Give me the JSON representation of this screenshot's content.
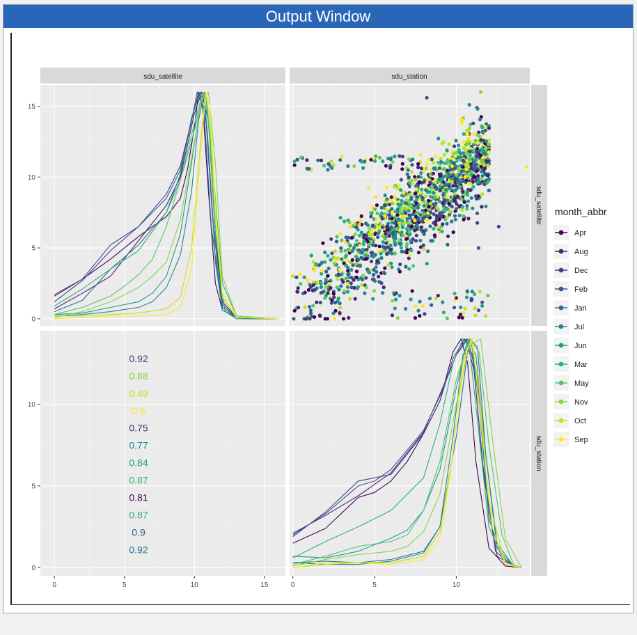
{
  "window": {
    "title": "Output Window"
  },
  "colors": {
    "Apr": "#440154",
    "Aug": "#482173",
    "Dec": "#433e85",
    "Feb": "#38588c",
    "Jan": "#2d708e",
    "Jul": "#25858e",
    "Jun": "#1e9b8a",
    "Mar": "#2ab07f",
    "May": "#52c569",
    "Nov": "#86d549",
    "Oct": "#c2df23",
    "Sep": "#fde725"
  },
  "chart_data": {
    "type": "scatter",
    "facets": {
      "columns": [
        "sdu_satellite",
        "sdu_station"
      ],
      "rows": [
        "sdu_satellite",
        "sdu_station"
      ]
    },
    "legend": {
      "title": "month_abbr",
      "position": "right",
      "entries": [
        "Apr",
        "Aug",
        "Dec",
        "Feb",
        "Jan",
        "Jul",
        "Jun",
        "Mar",
        "May",
        "Nov",
        "Oct",
        "Sep"
      ]
    },
    "panels": {
      "top_left": {
        "type": "line",
        "xlim": [
          -1,
          16.5
        ],
        "ylim": [
          -0.5,
          16.5
        ],
        "x_ticks": [
          0,
          5,
          10,
          15
        ],
        "y_ticks": [
          0,
          5,
          10,
          15
        ]
      },
      "top_right": {
        "type": "scatter",
        "xlim": [
          -0.2,
          14.5
        ],
        "ylim": [
          -0.5,
          16.5
        ],
        "x_ticks": [
          0,
          5,
          10
        ],
        "y_ticks": [
          0,
          5,
          10,
          15
        ]
      },
      "bottom_left": {
        "type": "table",
        "ylim": [
          -0.5,
          14.5
        ],
        "x_ticks": [
          0,
          5,
          10,
          15
        ],
        "y_ticks": [
          0,
          5,
          10
        ],
        "correlations": [
          {
            "value": "0.92",
            "month": "Dec"
          },
          {
            "value": "0.88",
            "month": "Nov"
          },
          {
            "value": "0.49",
            "month": "Oct"
          },
          {
            "value": "0.6",
            "month": "Sep"
          },
          {
            "value": "0.75",
            "month": "Aug"
          },
          {
            "value": "0.77",
            "month": "Jul"
          },
          {
            "value": "0.84",
            "month": "Jun"
          },
          {
            "value": "0.87",
            "month": "Mar"
          },
          {
            "value": "0.81",
            "month": "Apr"
          },
          {
            "value": "0.87",
            "month": "Mar"
          },
          {
            "value": "0.9",
            "month": "Feb"
          },
          {
            "value": "0.92",
            "month": "Jan"
          }
        ]
      },
      "bottom_right": {
        "type": "line",
        "xlim": [
          -0.2,
          14.5
        ],
        "ylim": [
          -0.5,
          14.5
        ],
        "x_ticks": [
          0,
          5,
          10
        ],
        "y_ticks": [
          0,
          5,
          10
        ]
      }
    },
    "density_satellite": [
      {
        "month": "Apr",
        "x": [
          0,
          2,
          4,
          6,
          8,
          9,
          9.5,
          10,
          10.3,
          10.6,
          11,
          11.5,
          12,
          13,
          14,
          16
        ],
        "y": [
          1.6,
          2.8,
          4.2,
          5.8,
          7.2,
          8.5,
          10.5,
          13.5,
          16,
          15,
          9,
          2.5,
          0.6,
          0.1,
          0,
          0
        ]
      },
      {
        "month": "Aug",
        "x": [
          0,
          2,
          4,
          6,
          8,
          9,
          10,
          10.5,
          11,
          11.5,
          12,
          13,
          16
        ],
        "y": [
          0.7,
          1.8,
          3,
          5.5,
          8,
          10,
          14.5,
          16,
          14,
          6,
          1.2,
          0.1,
          0
        ]
      },
      {
        "month": "Dec",
        "x": [
          0,
          2,
          4,
          6,
          8,
          9,
          9.8,
          10.3,
          10.8,
          11.3,
          12,
          13,
          16
        ],
        "y": [
          1.2,
          2.7,
          4.8,
          6.5,
          8.8,
          10.8,
          14,
          16,
          14.5,
          7,
          1,
          0.1,
          0
        ]
      },
      {
        "month": "Feb",
        "x": [
          0,
          2,
          4,
          6,
          8,
          9,
          9.7,
          10.2,
          10.7,
          11.2,
          12,
          13,
          16
        ],
        "y": [
          1.7,
          2.8,
          5.2,
          6.5,
          8.5,
          10.5,
          13.5,
          16,
          14.5,
          6.5,
          0.8,
          0.1,
          0
        ]
      },
      {
        "month": "Jan",
        "x": [
          0,
          2,
          4,
          6,
          8,
          9,
          9.8,
          10.4,
          10.9,
          11.4,
          12,
          13,
          16
        ],
        "y": [
          0.5,
          1.3,
          3.5,
          5.2,
          7.5,
          10.2,
          14.2,
          16,
          13.5,
          6,
          1,
          0.1,
          0
        ]
      },
      {
        "month": "Jul",
        "x": [
          0,
          2,
          4,
          6,
          7,
          8,
          9,
          9.8,
          10.3,
          10.7,
          11,
          11.5,
          12,
          13,
          16
        ],
        "y": [
          0.2,
          0.3,
          0.5,
          0.8,
          1.2,
          2.2,
          4.5,
          9,
          14,
          16,
          12,
          4,
          0.6,
          0.1,
          0
        ]
      },
      {
        "month": "Jun",
        "x": [
          0,
          2,
          4,
          6,
          7,
          8,
          9,
          9.8,
          10.4,
          10.8,
          11.2,
          11.6,
          12.2,
          13,
          16
        ],
        "y": [
          0.3,
          0.4,
          0.8,
          1.2,
          1.8,
          3,
          6,
          11,
          15,
          16,
          11.5,
          4,
          0.5,
          0,
          0
        ]
      },
      {
        "month": "Mar",
        "x": [
          0,
          2,
          4,
          6,
          8,
          9,
          9.8,
          10.4,
          10.8,
          11.2,
          12,
          13,
          16
        ],
        "y": [
          0.9,
          2.1,
          3.5,
          4.8,
          7.5,
          9.8,
          12.5,
          15,
          16,
          12,
          2.5,
          0.2,
          0
        ]
      },
      {
        "month": "May",
        "x": [
          0,
          2,
          4,
          5,
          6,
          7,
          8,
          9,
          10,
          10.6,
          11,
          11.4,
          12,
          13,
          16
        ],
        "y": [
          0.3,
          0.8,
          1.6,
          2.3,
          3.1,
          4.2,
          6.5,
          9.8,
          13.8,
          16,
          14,
          8,
          1.5,
          0.1,
          0
        ]
      },
      {
        "month": "Nov",
        "x": [
          0,
          2,
          4,
          6,
          7,
          8,
          9,
          10,
          10.5,
          11,
          11.5,
          12,
          13,
          16
        ],
        "y": [
          0.1,
          0.5,
          1.2,
          2.2,
          3,
          4,
          7,
          12.5,
          15.5,
          16,
          11,
          3,
          0.2,
          0
        ]
      },
      {
        "month": "Oct",
        "x": [
          0,
          2,
          4,
          6,
          8,
          9,
          9.8,
          10.4,
          10.8,
          11.1,
          11.5,
          12,
          13,
          16
        ],
        "y": [
          0.2,
          0.2,
          0.3,
          0.4,
          0.7,
          1.5,
          5,
          12,
          16,
          14,
          7,
          1.5,
          0.1,
          0
        ]
      },
      {
        "month": "Sep",
        "x": [
          0,
          2,
          4,
          6,
          8,
          9,
          9.8,
          10.4,
          10.8,
          11.1,
          11.5,
          12,
          13,
          16
        ],
        "y": [
          0,
          0.1,
          0.2,
          0.2,
          0.3,
          0.8,
          3.5,
          11,
          16,
          15,
          8,
          1.8,
          0.1,
          0
        ]
      }
    ],
    "density_station": [
      {
        "month": "Apr",
        "x": [
          0,
          2,
          4,
          5,
          6,
          7,
          8,
          9,
          9.8,
          10.3,
          10.7,
          11.2,
          12,
          13,
          14
        ],
        "y": [
          1.5,
          2.4,
          4.3,
          4.6,
          5.3,
          6.5,
          8.2,
          10.2,
          13.2,
          14,
          12.5,
          6.5,
          1.2,
          0.1,
          0
        ]
      },
      {
        "month": "Aug",
        "x": [
          0,
          2,
          4,
          6,
          8,
          9,
          10,
          10.6,
          11.1,
          11.7,
          12.5,
          13.5,
          14
        ],
        "y": [
          2.1,
          3.2,
          4.4,
          5.8,
          8.3,
          10.6,
          13,
          14,
          12,
          5.5,
          0.7,
          0.1,
          0
        ]
      },
      {
        "month": "Dec",
        "x": [
          0,
          2,
          4,
          6,
          8,
          9,
          9.8,
          10.5,
          11,
          11.6,
          12.4,
          13.5,
          14
        ],
        "y": [
          1.9,
          3.4,
          5.3,
          5.7,
          8.2,
          10.2,
          12.8,
          14,
          13,
          6.5,
          1,
          0.1,
          0
        ]
      },
      {
        "month": "Feb",
        "x": [
          0,
          2,
          4,
          5,
          6,
          8,
          9,
          10,
          10.7,
          11.3,
          12,
          13,
          14
        ],
        "y": [
          2,
          3.3,
          5,
          5.3,
          6,
          8.4,
          10.5,
          13,
          14,
          11.5,
          3,
          0.2,
          0
        ]
      },
      {
        "month": "Jan",
        "x": [
          0,
          2,
          4,
          6,
          8,
          9,
          10,
          10.8,
          11.3,
          11.8,
          12.5,
          13.5,
          14
        ],
        "y": [
          0.3,
          0.4,
          0.3,
          0.5,
          1,
          2.5,
          8,
          14,
          13.5,
          7,
          1.2,
          0.1,
          0
        ]
      },
      {
        "month": "Jul",
        "x": [
          0,
          2,
          4,
          6,
          8,
          9,
          9.8,
          10.4,
          10.9,
          11.4,
          12,
          13,
          14
        ],
        "y": [
          0.3,
          0.2,
          0.2,
          0.4,
          0.9,
          2.5,
          8,
          13,
          14,
          10,
          3,
          0.2,
          0
        ]
      },
      {
        "month": "Jun",
        "x": [
          0,
          2,
          4,
          6,
          7,
          8,
          9,
          10,
          10.7,
          11.2,
          11.8,
          12.5,
          13.5,
          14
        ],
        "y": [
          0.7,
          0.6,
          1,
          1.8,
          2.3,
          3.5,
          6,
          11,
          14,
          13,
          7,
          1.5,
          0.1,
          0
        ]
      },
      {
        "month": "Mar",
        "x": [
          0,
          2,
          4,
          6,
          8,
          9,
          9.8,
          10.4,
          10.8,
          11.3,
          12,
          13,
          14
        ],
        "y": [
          0.6,
          1.6,
          2.5,
          3.5,
          5.5,
          8.8,
          12.5,
          14,
          13.5,
          9,
          2.5,
          0.2,
          0
        ]
      },
      {
        "month": "May",
        "x": [
          0,
          2,
          4,
          6,
          7,
          8,
          9,
          10,
          10.8,
          11.4,
          12,
          12.8,
          13.5,
          14
        ],
        "y": [
          0.2,
          0.7,
          1.3,
          1.6,
          2,
          3.5,
          6.5,
          11.5,
          14,
          13.2,
          7.5,
          2,
          0.2,
          0
        ]
      },
      {
        "month": "Nov",
        "x": [
          0,
          2,
          4,
          6,
          7,
          8,
          9,
          10,
          10.8,
          11.5,
          12.2,
          13,
          14
        ],
        "y": [
          0.1,
          0.5,
          0.8,
          1,
          1.3,
          2.2,
          4.5,
          10,
          13.6,
          14,
          8,
          1.8,
          0
        ]
      },
      {
        "month": "Oct",
        "x": [
          0,
          2,
          4,
          6,
          8,
          9,
          9.8,
          10.4,
          10.9,
          11.4,
          12,
          13,
          14
        ],
        "y": [
          0,
          0.2,
          0.3,
          0.3,
          0.7,
          2.2,
          7,
          12.5,
          14,
          11,
          4,
          0.3,
          0
        ]
      },
      {
        "month": "Sep",
        "x": [
          0,
          2,
          4,
          6,
          8,
          9,
          9.6,
          10.2,
          10.6,
          11,
          11.5,
          12.2,
          13,
          14
        ],
        "y": [
          0,
          0.3,
          0.3,
          0.2,
          0.5,
          1.8,
          5.5,
          10.5,
          13.2,
          14,
          9,
          2.5,
          0.2,
          0
        ]
      }
    ]
  }
}
